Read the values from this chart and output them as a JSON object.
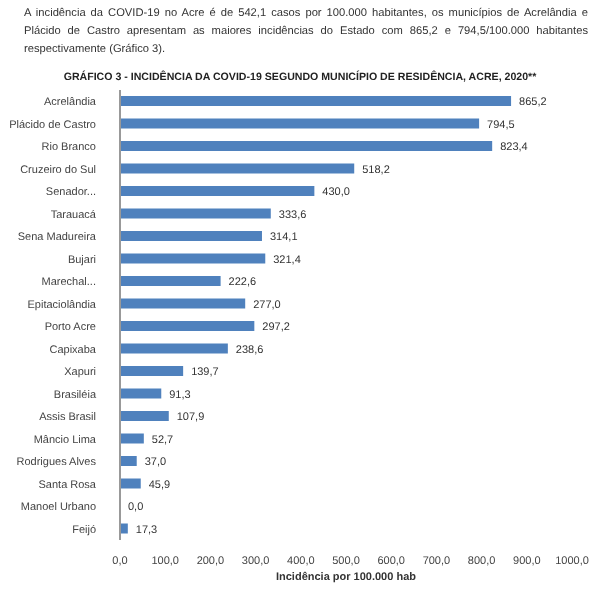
{
  "chart_data": {
    "type": "bar",
    "orientation": "horizontal",
    "title": "GRÁFICO 3 - INCIDÊNCIA DA COVID-19 SEGUNDO MUNICÍPIO DE RESIDÊNCIA, ACRE, 2020**",
    "annotations": [
      "A incidência da COVID-19 no Acre é de 542,1 casos por 100.000 habitantes, os municípios de Acrelândia e Plácido de Castro apresentam as maiores incidências do Estado com 865,2 e 794,5/100.000 habitantes respectivamente (Gráfico 3)."
    ],
    "xlabel": "Incidência por 100.000 hab",
    "categories": [
      "Acrelândia",
      "Plácido de Castro",
      "Rio Branco",
      "Cruzeiro do Sul",
      "Senador...",
      "Tarauacá",
      "Sena Madureira",
      "Bujari",
      "Marechal...",
      "Epitaciolândia",
      "Porto Acre",
      "Capixaba",
      "Xapuri",
      "Brasiléia",
      "Assis Brasil",
      "Mâncio Lima",
      "Rodrigues Alves",
      "Santa Rosa",
      "Manoel Urbano",
      "Feijó"
    ],
    "values": [
      865.2,
      794.5,
      823.4,
      518.2,
      430.0,
      333.6,
      314.1,
      321.4,
      222.6,
      277.0,
      297.2,
      238.6,
      139.7,
      91.3,
      107.9,
      52.7,
      37.0,
      45.9,
      0.0,
      17.3
    ],
    "value_labels": [
      "865,2",
      "794,5",
      "823,4",
      "518,2",
      "430,0",
      "333,6",
      "314,1",
      "321,4",
      "222,6",
      "277,0",
      "297,2",
      "238,6",
      "139,7",
      "91,3",
      "107,9",
      "52,7",
      "37,0",
      "45,9",
      "0,0",
      "17,3"
    ],
    "color": "#4f81bd",
    "xlim": [
      0,
      1000
    ],
    "xticks": [
      {
        "value": 0,
        "label": "0,0"
      },
      {
        "value": 100,
        "label": "100,0"
      },
      {
        "value": 200,
        "label": "200,0"
      },
      {
        "value": 300,
        "label": "300,0"
      },
      {
        "value": 400,
        "label": "400,0"
      },
      {
        "value": 500,
        "label": "500,0"
      },
      {
        "value": 600,
        "label": "600,0"
      },
      {
        "value": 700,
        "label": "700,0"
      },
      {
        "value": 800,
        "label": "800,0"
      },
      {
        "value": 900,
        "label": "900,0"
      },
      {
        "value": 1000,
        "label": "1000,0"
      }
    ],
    "grid": false,
    "legend": false
  }
}
